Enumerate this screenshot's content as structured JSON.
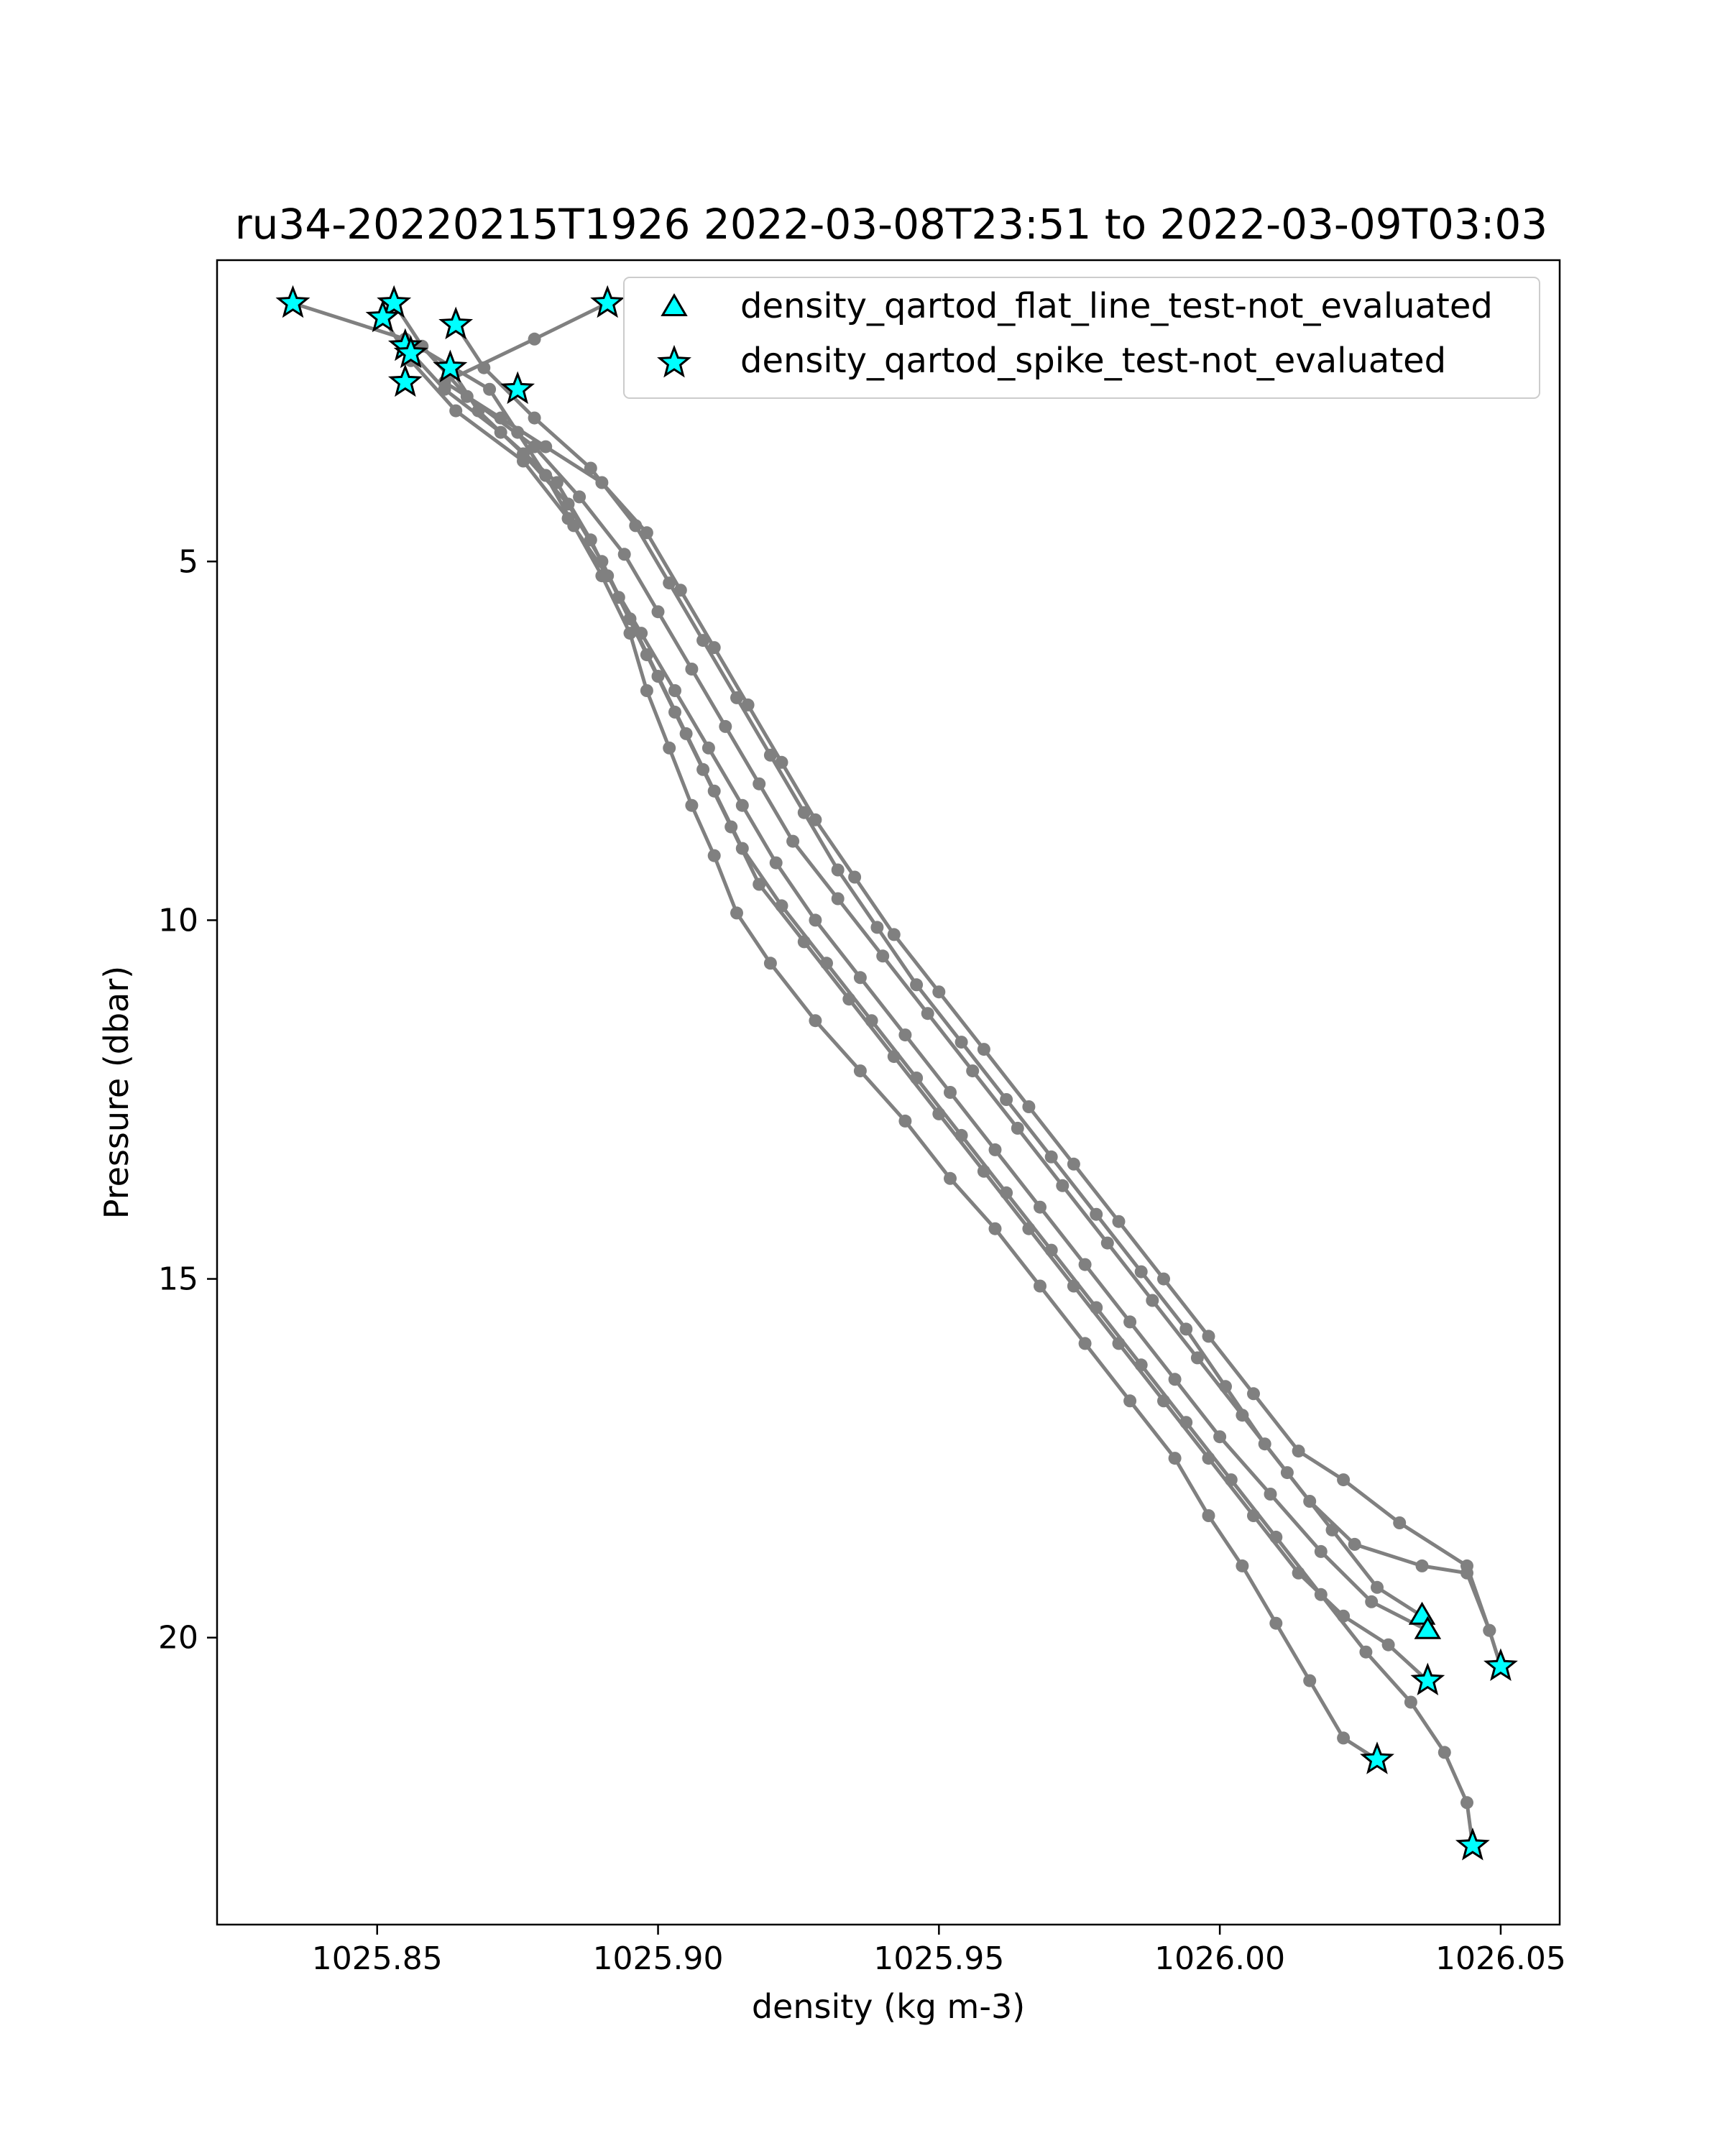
{
  "chart_data": {
    "type": "line",
    "title": "ru34-20220215T1926 2022-03-08T23:51 to 2022-03-09T03:03",
    "xlabel": "density (kg m-3)",
    "ylabel": "Pressure (dbar)",
    "xlim": [
      1025.8215,
      1026.0605
    ],
    "ylim": [
      24.0,
      0.8
    ],
    "y_inverted": true,
    "xticks": [
      "1025.85",
      "1025.90",
      "1025.95",
      "1026.00",
      "1026.05"
    ],
    "yticks": [
      "5",
      "10",
      "15",
      "20"
    ],
    "grid": false,
    "legend_position": "top-right",
    "line_color": "#808080",
    "marker_color": "#00ffff",
    "legend": [
      {
        "label": "density_qartod_flat_line_test-not_evaluated",
        "marker": "triangle"
      },
      {
        "label": "density_qartod_spike_test-not_evaluated",
        "marker": "star"
      }
    ],
    "series": [
      {
        "values": [
          [
            1025.835,
            1.4
          ],
          [
            1025.855,
            1.9
          ],
          [
            1025.87,
            2.6
          ],
          [
            1025.875,
            3.2
          ],
          [
            1025.88,
            3.8
          ],
          [
            1025.885,
            4.5
          ],
          [
            1025.89,
            5.2
          ],
          [
            1025.895,
            6.0
          ],
          [
            1025.898,
            6.8
          ],
          [
            1025.902,
            7.6
          ],
          [
            1025.906,
            8.4
          ],
          [
            1025.91,
            9.1
          ],
          [
            1025.914,
            9.9
          ],
          [
            1025.92,
            10.6
          ],
          [
            1025.928,
            11.4
          ],
          [
            1025.936,
            12.1
          ],
          [
            1025.944,
            12.8
          ],
          [
            1025.952,
            13.6
          ],
          [
            1025.96,
            14.3
          ],
          [
            1025.968,
            15.1
          ],
          [
            1025.976,
            15.9
          ],
          [
            1025.984,
            16.7
          ],
          [
            1025.992,
            17.5
          ],
          [
            1025.998,
            18.3
          ],
          [
            1026.004,
            19.0
          ],
          [
            1026.01,
            19.8
          ],
          [
            1026.016,
            20.6
          ],
          [
            1026.022,
            21.4
          ],
          [
            1026.028,
            21.7
          ]
        ]
      },
      {
        "values": [
          [
            1025.853,
            1.4
          ],
          [
            1025.858,
            2.0
          ],
          [
            1025.866,
            2.7
          ],
          [
            1025.878,
            3.4
          ],
          [
            1025.886,
            4.1
          ],
          [
            1025.894,
            4.9
          ],
          [
            1025.9,
            5.7
          ],
          [
            1025.906,
            6.5
          ],
          [
            1025.912,
            7.3
          ],
          [
            1025.918,
            8.1
          ],
          [
            1025.924,
            8.9
          ],
          [
            1025.932,
            9.7
          ],
          [
            1025.94,
            10.5
          ],
          [
            1025.948,
            11.3
          ],
          [
            1025.956,
            12.1
          ],
          [
            1025.964,
            12.9
          ],
          [
            1025.972,
            13.7
          ],
          [
            1025.98,
            14.5
          ],
          [
            1025.988,
            15.3
          ],
          [
            1025.996,
            16.1
          ],
          [
            1026.004,
            16.9
          ],
          [
            1026.012,
            17.7
          ],
          [
            1026.02,
            18.5
          ],
          [
            1026.028,
            19.3
          ],
          [
            1026.036,
            19.7
          ]
        ]
      },
      {
        "values": [
          [
            1025.851,
            1.6
          ],
          [
            1025.856,
            2.2
          ],
          [
            1025.864,
            2.9
          ],
          [
            1025.876,
            3.6
          ],
          [
            1025.884,
            4.4
          ],
          [
            1025.891,
            5.2
          ],
          [
            1025.897,
            6.0
          ],
          [
            1025.903,
            6.8
          ],
          [
            1025.909,
            7.6
          ],
          [
            1025.915,
            8.4
          ],
          [
            1025.921,
            9.2
          ],
          [
            1025.928,
            10.0
          ],
          [
            1025.936,
            10.8
          ],
          [
            1025.944,
            11.6
          ],
          [
            1025.952,
            12.4
          ],
          [
            1025.96,
            13.2
          ],
          [
            1025.968,
            14.0
          ],
          [
            1025.976,
            14.8
          ],
          [
            1025.984,
            15.6
          ],
          [
            1025.992,
            16.4
          ],
          [
            1026.0,
            17.2
          ],
          [
            1026.009,
            18.0
          ],
          [
            1026.018,
            18.8
          ],
          [
            1026.027,
            19.5
          ],
          [
            1026.037,
            19.9
          ]
        ]
      },
      {
        "values": [
          [
            1025.855,
            2.0
          ],
          [
            1025.862,
            2.6
          ],
          [
            1025.872,
            3.2
          ],
          [
            1025.882,
            3.9
          ],
          [
            1025.888,
            4.7
          ],
          [
            1025.893,
            5.5
          ],
          [
            1025.898,
            6.3
          ],
          [
            1025.903,
            7.1
          ],
          [
            1025.908,
            7.9
          ],
          [
            1025.913,
            8.7
          ],
          [
            1025.918,
            9.5
          ],
          [
            1025.926,
            10.3
          ],
          [
            1025.934,
            11.1
          ],
          [
            1025.942,
            11.9
          ],
          [
            1025.95,
            12.7
          ],
          [
            1025.958,
            13.5
          ],
          [
            1025.966,
            14.3
          ],
          [
            1025.974,
            15.1
          ],
          [
            1025.982,
            15.9
          ],
          [
            1025.99,
            16.7
          ],
          [
            1025.998,
            17.5
          ],
          [
            1026.006,
            18.3
          ],
          [
            1026.014,
            19.1
          ],
          [
            1026.022,
            19.7
          ],
          [
            1026.03,
            20.1
          ],
          [
            1026.037,
            20.6
          ]
        ]
      },
      {
        "values": [
          [
            1025.863,
            2.3
          ],
          [
            1025.868,
            2.9
          ],
          [
            1025.876,
            3.5
          ],
          [
            1025.884,
            4.2
          ],
          [
            1025.89,
            5.0
          ],
          [
            1025.895,
            5.8
          ],
          [
            1025.9,
            6.6
          ],
          [
            1025.905,
            7.4
          ],
          [
            1025.91,
            8.2
          ],
          [
            1025.915,
            9.0
          ],
          [
            1025.922,
            9.8
          ],
          [
            1025.93,
            10.6
          ],
          [
            1025.938,
            11.4
          ],
          [
            1025.946,
            12.2
          ],
          [
            1025.954,
            13.0
          ],
          [
            1025.962,
            13.8
          ],
          [
            1025.97,
            14.6
          ],
          [
            1025.978,
            15.4
          ],
          [
            1025.986,
            16.2
          ],
          [
            1025.994,
            17.0
          ],
          [
            1026.002,
            17.8
          ],
          [
            1026.01,
            18.6
          ],
          [
            1026.018,
            19.4
          ],
          [
            1026.026,
            20.2
          ],
          [
            1026.034,
            20.9
          ],
          [
            1026.04,
            21.6
          ],
          [
            1026.044,
            22.3
          ],
          [
            1026.045,
            22.9
          ]
        ]
      },
      {
        "values": [
          [
            1025.864,
            1.7
          ],
          [
            1025.869,
            2.3
          ],
          [
            1025.878,
            3.0
          ],
          [
            1025.888,
            3.7
          ],
          [
            1025.896,
            4.5
          ],
          [
            1025.902,
            5.3
          ],
          [
            1025.908,
            6.1
          ],
          [
            1025.914,
            6.9
          ],
          [
            1025.92,
            7.7
          ],
          [
            1025.926,
            8.5
          ],
          [
            1025.932,
            9.3
          ],
          [
            1025.939,
            10.1
          ],
          [
            1025.946,
            10.9
          ],
          [
            1025.954,
            11.7
          ],
          [
            1025.962,
            12.5
          ],
          [
            1025.97,
            13.3
          ],
          [
            1025.978,
            14.1
          ],
          [
            1025.986,
            14.9
          ],
          [
            1025.994,
            15.7
          ],
          [
            1026.001,
            16.5
          ],
          [
            1026.008,
            17.3
          ],
          [
            1026.016,
            18.1
          ],
          [
            1026.024,
            18.7
          ],
          [
            1026.036,
            19.0
          ],
          [
            1026.044,
            19.1
          ],
          [
            1026.048,
            19.9
          ],
          [
            1026.05,
            20.4
          ]
        ]
      },
      {
        "values": [
          [
            1025.891,
            1.4
          ],
          [
            1025.878,
            1.9
          ],
          [
            1025.862,
            2.5
          ],
          [
            1025.872,
            3.0
          ],
          [
            1025.88,
            3.4
          ],
          [
            1025.89,
            3.9
          ],
          [
            1025.898,
            4.6
          ],
          [
            1025.904,
            5.4
          ],
          [
            1025.91,
            6.2
          ],
          [
            1025.916,
            7.0
          ],
          [
            1025.922,
            7.8
          ],
          [
            1025.928,
            8.6
          ],
          [
            1025.935,
            9.4
          ],
          [
            1025.942,
            10.2
          ],
          [
            1025.95,
            11.0
          ],
          [
            1025.958,
            11.8
          ],
          [
            1025.966,
            12.6
          ],
          [
            1025.974,
            13.4
          ],
          [
            1025.982,
            14.2
          ],
          [
            1025.99,
            15.0
          ],
          [
            1025.998,
            15.8
          ],
          [
            1026.006,
            16.6
          ],
          [
            1026.014,
            17.4
          ],
          [
            1026.022,
            17.8
          ],
          [
            1026.032,
            18.4
          ],
          [
            1026.044,
            19.0
          ],
          [
            1026.048,
            19.9
          ],
          [
            1026.05,
            20.4
          ]
        ]
      }
    ],
    "flat_line_points": [
      [
        1026.036,
        19.7
      ],
      [
        1026.037,
        19.9
      ]
    ],
    "spike_points": [
      [
        1025.835,
        1.4
      ],
      [
        1025.853,
        1.4
      ],
      [
        1025.851,
        1.6
      ],
      [
        1025.855,
        2.0
      ],
      [
        1025.856,
        2.1
      ],
      [
        1025.863,
        2.3
      ],
      [
        1025.855,
        2.5
      ],
      [
        1025.864,
        1.7
      ],
      [
        1025.875,
        2.6
      ],
      [
        1025.891,
        1.4
      ],
      [
        1026.037,
        20.6
      ],
      [
        1026.05,
        20.4
      ],
      [
        1026.028,
        21.7
      ],
      [
        1026.045,
        22.9
      ]
    ]
  }
}
